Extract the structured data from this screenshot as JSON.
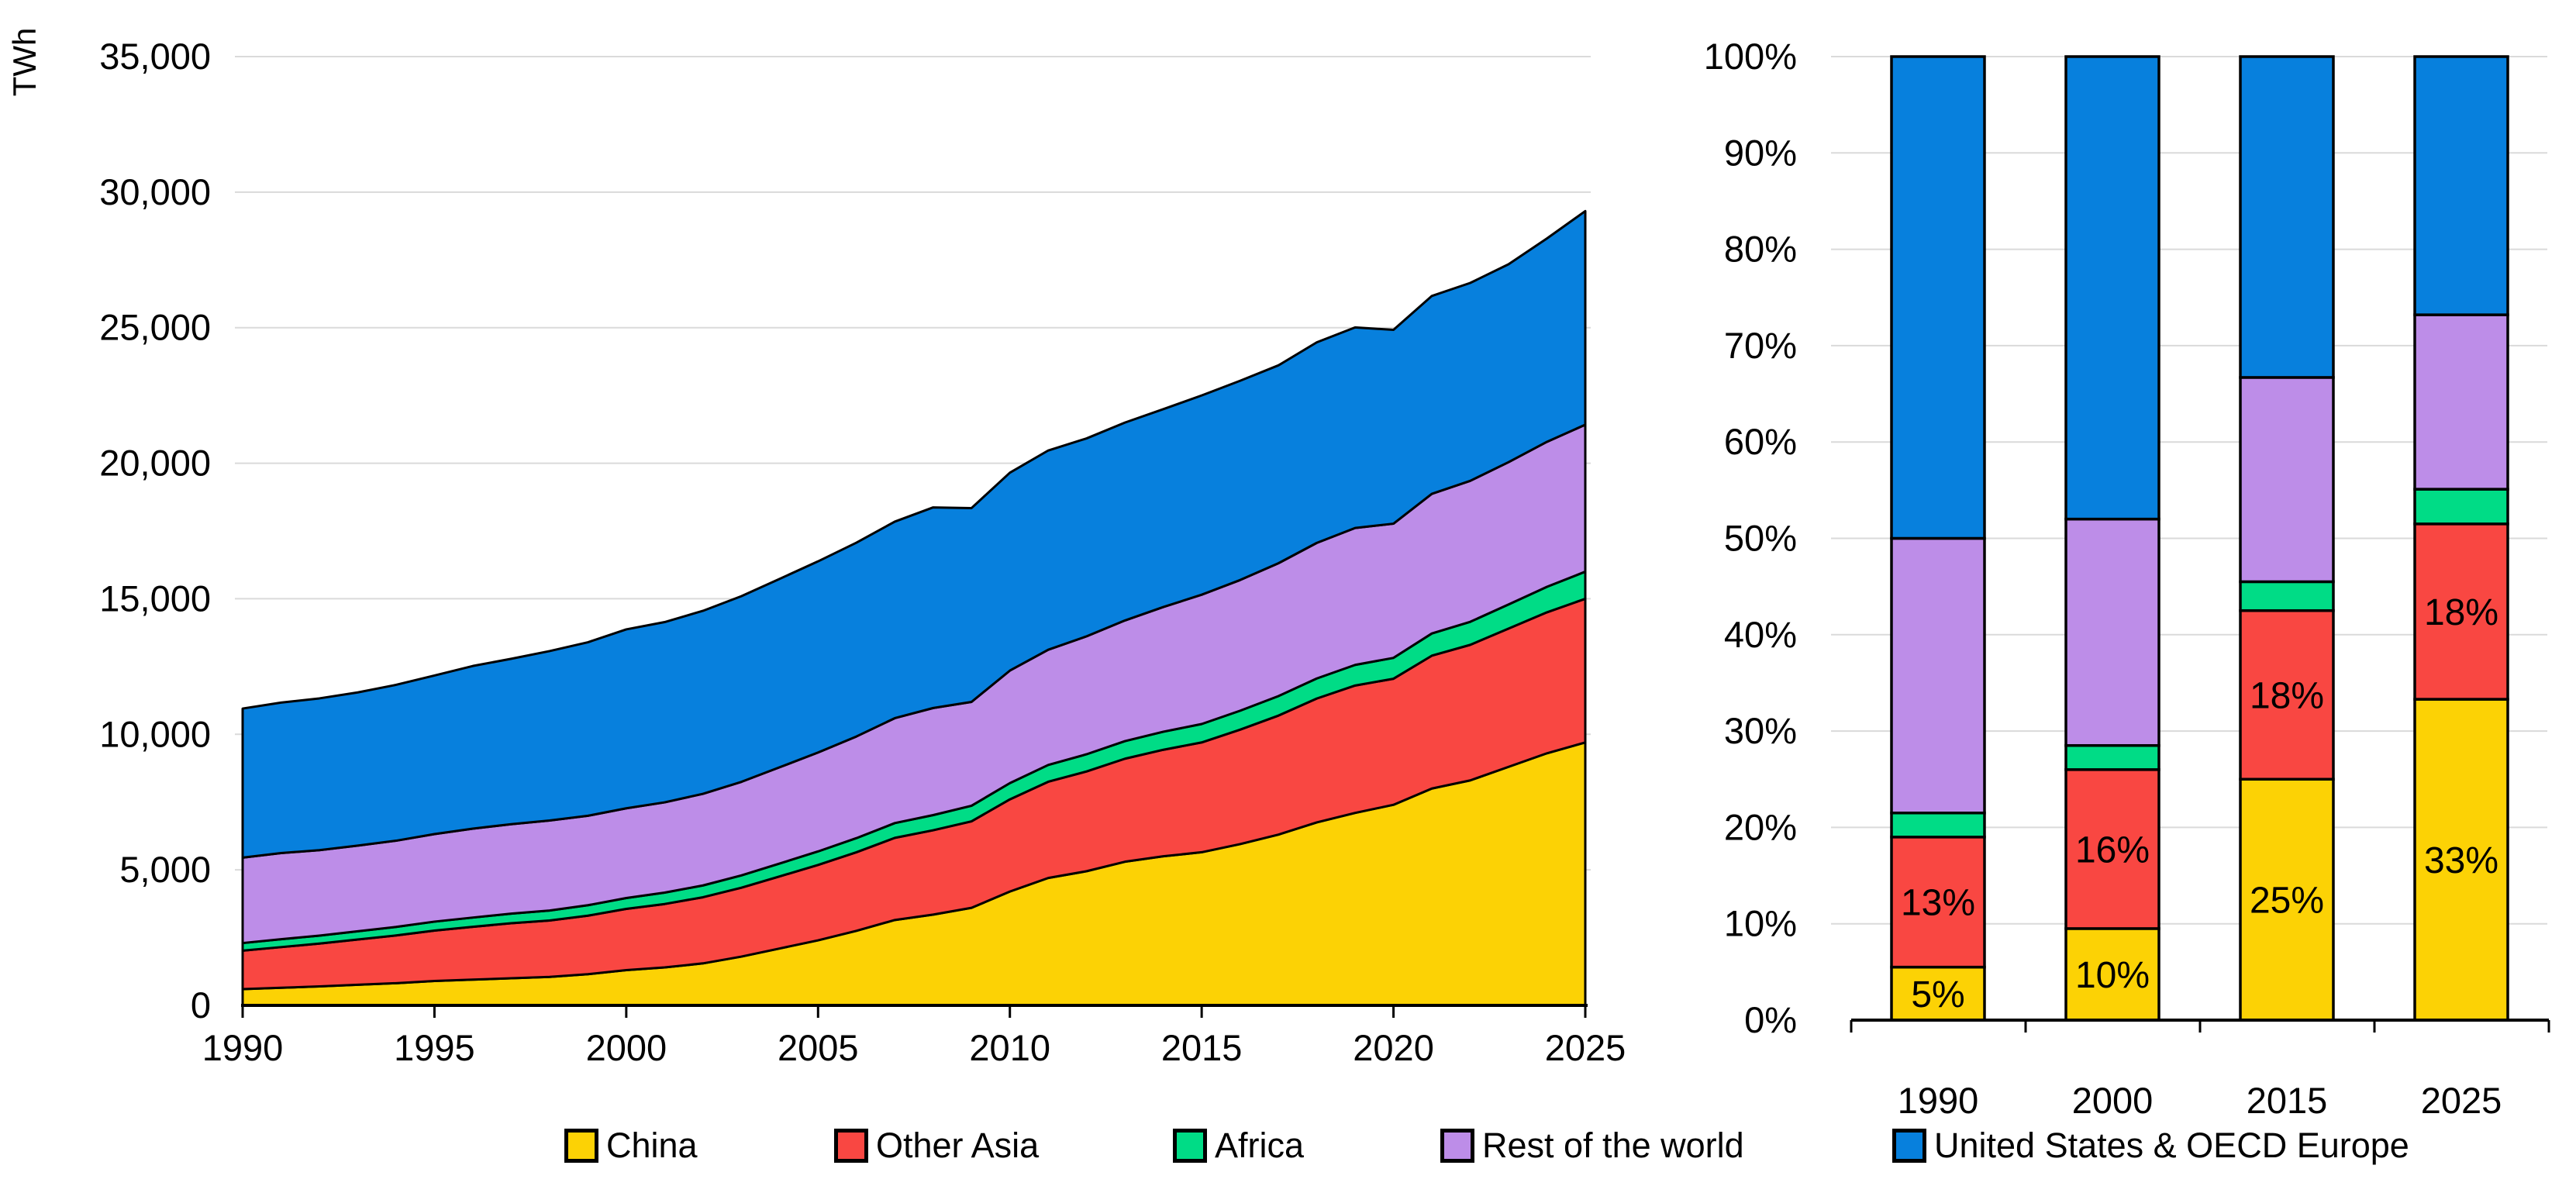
{
  "page": {
    "background": "#ffffff"
  },
  "colors": {
    "china": "#FCD205",
    "other_asia": "#F94742",
    "africa": "#00DC86",
    "rest_of_world": "#BD8DE8",
    "us_oecd_europe": "#0780DD",
    "grid": "#DADADA",
    "axis": "#000000",
    "outline": "#000000",
    "label_dark": "#000000",
    "label_light": "#FFFFFF"
  },
  "legend": {
    "items": [
      {
        "label": "China",
        "color": "#FCD205"
      },
      {
        "label": "Other Asia",
        "color": "#F94742"
      },
      {
        "label": "Africa",
        "color": "#00DC86"
      },
      {
        "label": "Rest of the world",
        "color": "#BD8DE8"
      },
      {
        "label": "United States & OECD Europe",
        "color": "#0780DD"
      }
    ]
  },
  "chart_data": [
    {
      "type": "area",
      "stacked": true,
      "title": "",
      "unit_label": "TWh",
      "xlabel": "",
      "ylabel": "TWh",
      "x_start": 1990,
      "x_end": 2025,
      "x": [
        1990,
        1991,
        1992,
        1993,
        1994,
        1995,
        1996,
        1997,
        1998,
        1999,
        2000,
        2001,
        2002,
        2003,
        2004,
        2005,
        2006,
        2007,
        2008,
        2009,
        2010,
        2011,
        2012,
        2013,
        2014,
        2015,
        2016,
        2017,
        2018,
        2019,
        2020,
        2021,
        2022,
        2023,
        2024,
        2025
      ],
      "xtick_labels": [
        "1990",
        "1995",
        "2000",
        "2005",
        "2010",
        "2015",
        "2020",
        "2025"
      ],
      "xtick_years": [
        1990,
        1995,
        2000,
        2005,
        2010,
        2015,
        2020,
        2025
      ],
      "ylim": [
        0,
        35000
      ],
      "ytick_values": [
        0,
        5000,
        10000,
        15000,
        20000,
        25000,
        30000,
        35000
      ],
      "ytick_labels": [
        "0",
        "5,000",
        "10,000",
        "15,000",
        "20,000",
        "25,000",
        "30,000",
        "35,000"
      ],
      "grid": true,
      "legend_position": "bottom",
      "series": [
        {
          "name": "China",
          "color": "#FCD205",
          "values": [
            600,
            650,
            700,
            760,
            820,
            900,
            950,
            1000,
            1050,
            1150,
            1300,
            1400,
            1550,
            1800,
            2100,
            2400,
            2750,
            3150,
            3350,
            3600,
            4200,
            4700,
            4950,
            5300,
            5500,
            5650,
            5950,
            6300,
            6750,
            7100,
            7400,
            8000,
            8300,
            8800,
            9300,
            9700
          ]
        },
        {
          "name": "Other Asia",
          "color": "#F94742",
          "values": [
            1420,
            1500,
            1580,
            1670,
            1760,
            1860,
            1950,
            2030,
            2080,
            2160,
            2260,
            2340,
            2440,
            2540,
            2660,
            2780,
            2900,
            3030,
            3110,
            3190,
            3400,
            3550,
            3680,
            3800,
            3930,
            4050,
            4220,
            4390,
            4570,
            4700,
            4650,
            4900,
            5000,
            5100,
            5200,
            5300
          ]
        },
        {
          "name": "Africa",
          "color": "#00DC86",
          "values": [
            280,
            290,
            295,
            305,
            315,
            330,
            340,
            355,
            370,
            385,
            400,
            420,
            435,
            455,
            475,
            500,
            520,
            545,
            560,
            575,
            600,
            620,
            635,
            650,
            665,
            680,
            700,
            720,
            740,
            760,
            770,
            820,
            850,
            890,
            940,
            1000
          ]
        },
        {
          "name": "Rest of the world",
          "color": "#BD8DE8",
          "values": [
            3150,
            3180,
            3150,
            3160,
            3180,
            3230,
            3280,
            3300,
            3320,
            3300,
            3310,
            3330,
            3380,
            3450,
            3550,
            3650,
            3750,
            3870,
            3950,
            3830,
            4150,
            4250,
            4350,
            4450,
            4600,
            4770,
            4820,
            4900,
            5000,
            5050,
            4950,
            5150,
            5200,
            5250,
            5350,
            5420
          ]
        },
        {
          "name": "United States & OECD Europe",
          "color": "#0780DD",
          "values": [
            5500,
            5550,
            5600,
            5650,
            5750,
            5850,
            6000,
            6100,
            6250,
            6400,
            6600,
            6650,
            6750,
            6850,
            6950,
            7050,
            7150,
            7250,
            7400,
            7150,
            7300,
            7350,
            7300,
            7300,
            7300,
            7350,
            7350,
            7300,
            7400,
            7400,
            7150,
            7300,
            7300,
            7300,
            7500,
            7880
          ]
        }
      ]
    },
    {
      "type": "bar",
      "stacked_percent": true,
      "title": "",
      "categories": [
        "1990",
        "2000",
        "2015",
        "2025"
      ],
      "ylim": [
        0,
        100
      ],
      "ytick_labels": [
        "0%",
        "10%",
        "20%",
        "30%",
        "40%",
        "50%",
        "60%",
        "70%",
        "80%",
        "90%",
        "100%"
      ],
      "grid": true,
      "series": [
        {
          "name": "China",
          "color": "#FCD205",
          "values": [
            5.5,
            9.5,
            25.0,
            33.3
          ],
          "labels": [
            "5%",
            "10%",
            "25%",
            "33%"
          ],
          "label_color": "#000000"
        },
        {
          "name": "Other Asia",
          "color": "#F94742",
          "values": [
            13.5,
            16.5,
            17.5,
            18.2
          ],
          "labels": [
            "13%",
            "16%",
            "18%",
            "18%"
          ],
          "label_color": "#FFFFFF"
        },
        {
          "name": "Africa",
          "color": "#00DC86",
          "values": [
            2.5,
            2.5,
            3.0,
            3.6
          ],
          "labels": null,
          "label_color": null
        },
        {
          "name": "Rest of the world",
          "color": "#BD8DE8",
          "values": [
            28.5,
            23.5,
            21.2,
            18.1
          ],
          "labels": null,
          "label_color": null
        },
        {
          "name": "United States & OECD Europe",
          "color": "#0780DD",
          "values": [
            50.0,
            48.0,
            33.3,
            26.8
          ],
          "labels": null,
          "label_color": null
        }
      ]
    }
  ]
}
